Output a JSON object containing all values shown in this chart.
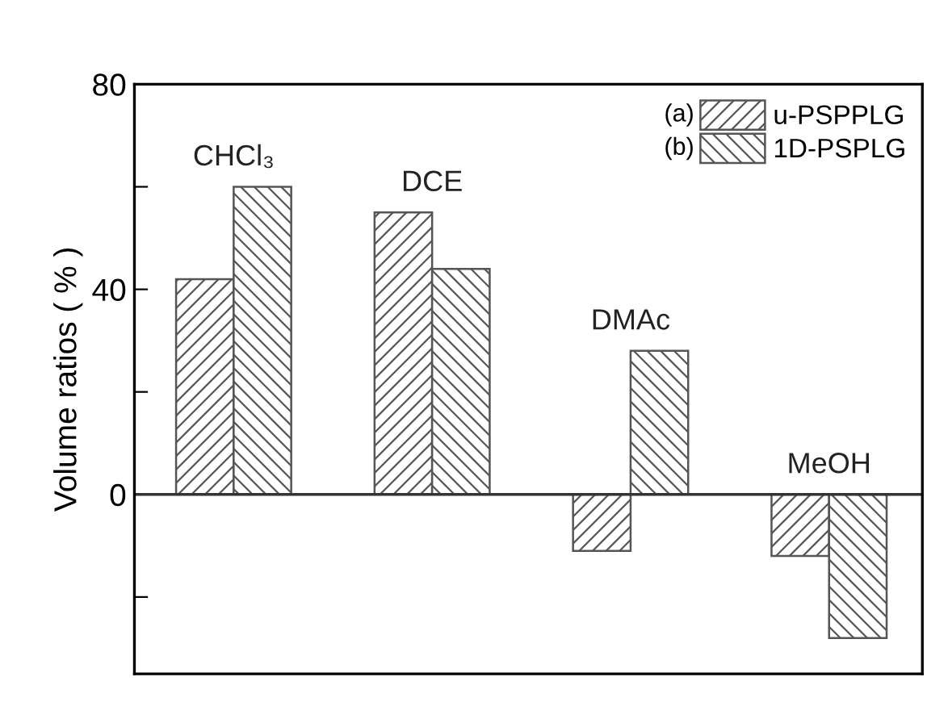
{
  "chart_data": {
    "type": "bar",
    "ylabel": "Volume ratios ( % )",
    "categories": [
      "CHCl₃",
      "DCE",
      "DMAc",
      "MeOH"
    ],
    "series": [
      {
        "name": "u-PSPPLG",
        "color": "#555555",
        "values": [
          42,
          55,
          -11,
          -12
        ]
      },
      {
        "name": "1D-PSPLG",
        "color": "#555555",
        "values": [
          60,
          44,
          28,
          -28
        ]
      }
    ],
    "ylim": [
      -35,
      80
    ],
    "yticks": [
      {
        "value": -20,
        "label": null
      },
      0,
      {
        "value": 20,
        "label": null
      },
      40,
      {
        "value": 60,
        "label": null
      },
      80
    ],
    "ref_lines": [
      {
        "axis": "y",
        "value": 0,
        "label": null,
        "color": "#333333"
      }
    ],
    "annotations": [
      "(a)",
      "(b)"
    ],
    "legend": "top right",
    "tick_labels": "y",
    "grid": false
  }
}
